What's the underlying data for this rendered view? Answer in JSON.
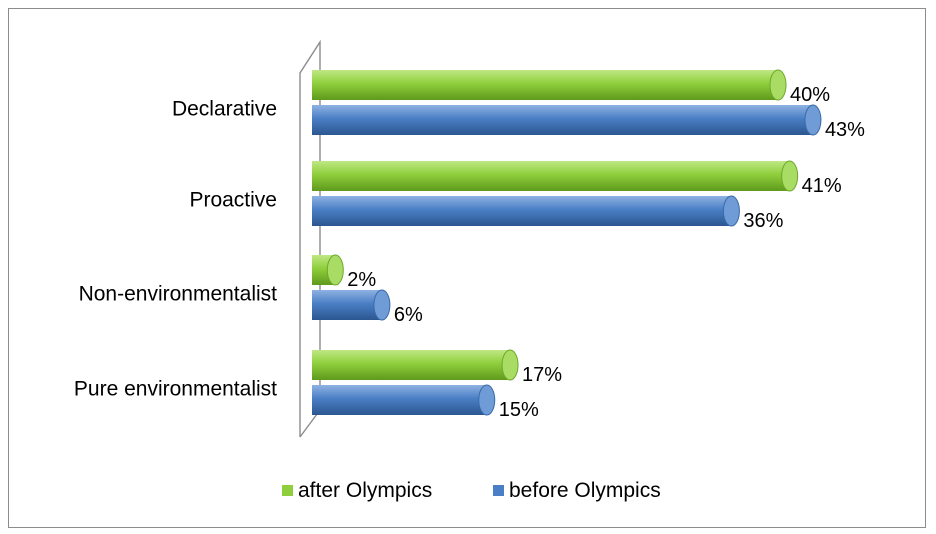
{
  "chart_data": {
    "type": "bar",
    "orientation": "horizontal",
    "style": "3d-cylinder",
    "categories": [
      "Declarative",
      "Proactive",
      "Non-environmentalist",
      "Pure environmentalist"
    ],
    "series": [
      {
        "name": "after Olympics",
        "values": [
          40,
          41,
          2,
          17
        ],
        "labels": [
          "40%",
          "41%",
          "2%",
          "17%"
        ],
        "color": "#8fce3c"
      },
      {
        "name": "before Olympics",
        "values": [
          43,
          36,
          6,
          15
        ],
        "labels": [
          "43%",
          "36%",
          "6%",
          "15%"
        ],
        "color": "#4a7fc5"
      }
    ],
    "unit": "%",
    "xlim": [
      0,
      45
    ],
    "grid": false,
    "legend_position": "bottom"
  }
}
